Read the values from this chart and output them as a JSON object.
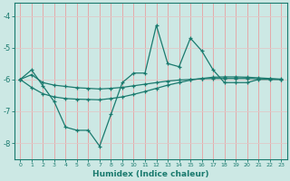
{
  "xlabel": "Humidex (Indice chaleur)",
  "bg_color": "#cce8e4",
  "line_color": "#1a7a6e",
  "grid_color_v": "#e8a0a0",
  "grid_color_h": "#e0c8c8",
  "xlim": [
    -0.5,
    23.5
  ],
  "ylim": [
    -8.5,
    -3.6
  ],
  "yticks": [
    -8,
    -7,
    -6,
    -5,
    -4
  ],
  "xticks": [
    0,
    1,
    2,
    3,
    4,
    5,
    6,
    7,
    8,
    9,
    10,
    11,
    12,
    13,
    14,
    15,
    16,
    17,
    18,
    19,
    20,
    21,
    22,
    23
  ],
  "line1_x": [
    0,
    1,
    2,
    3,
    4,
    5,
    6,
    7,
    8,
    9,
    10,
    11,
    12,
    13,
    14,
    15,
    16,
    17,
    18,
    19,
    20,
    21,
    22,
    23
  ],
  "line1_y": [
    -6.0,
    -5.7,
    -6.2,
    -6.7,
    -7.5,
    -7.6,
    -7.6,
    -8.1,
    -7.1,
    -6.1,
    -5.8,
    -5.8,
    -4.3,
    -5.5,
    -5.6,
    -4.7,
    -5.1,
    -5.7,
    -6.1,
    -6.1,
    -6.1,
    -6.0,
    -6.0,
    -6.0
  ],
  "line2_x": [
    0,
    1,
    2,
    3,
    4,
    5,
    6,
    7,
    8,
    9,
    10,
    11,
    12,
    13,
    14,
    15,
    16,
    17,
    18,
    19,
    20,
    21,
    22,
    23
  ],
  "line2_y": [
    -6.0,
    -5.85,
    -6.1,
    -6.18,
    -6.22,
    -6.26,
    -6.28,
    -6.3,
    -6.28,
    -6.25,
    -6.2,
    -6.15,
    -6.1,
    -6.05,
    -6.02,
    -6.0,
    -5.98,
    -5.97,
    -5.97,
    -5.97,
    -5.97,
    -5.98,
    -5.99,
    -6.0
  ],
  "line3_x": [
    0,
    1,
    2,
    3,
    4,
    5,
    6,
    7,
    8,
    9,
    10,
    11,
    12,
    13,
    14,
    15,
    16,
    17,
    18,
    19,
    20,
    21,
    22,
    23
  ],
  "line3_y": [
    -6.0,
    -6.25,
    -6.45,
    -6.55,
    -6.6,
    -6.62,
    -6.63,
    -6.64,
    -6.6,
    -6.55,
    -6.47,
    -6.38,
    -6.28,
    -6.18,
    -6.1,
    -6.02,
    -5.97,
    -5.93,
    -5.92,
    -5.92,
    -5.93,
    -5.95,
    -5.97,
    -5.99
  ]
}
